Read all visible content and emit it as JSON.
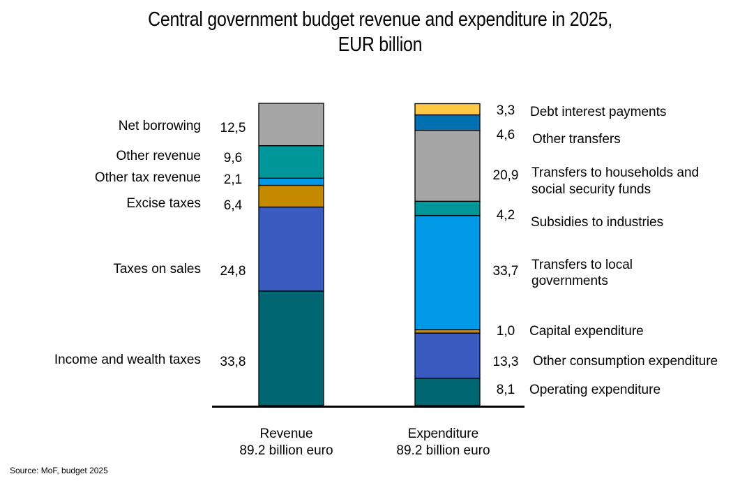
{
  "chart_data": {
    "type": "bar",
    "stacked": true,
    "title": "Central government budget revenue and expenditure in 2025, EUR billion",
    "title_lines": [
      "Central government budget revenue and expenditure in 2025,",
      "EUR billion"
    ],
    "source": "Source: MoF, budget 2025",
    "categories": [
      {
        "name": "Revenue",
        "total_label": "89.2 billion euro"
      },
      {
        "name": "Expenditure",
        "total_label": "89.2 billion euro"
      }
    ],
    "series": [
      {
        "stack": "Revenue",
        "segments": [
          {
            "name": "Income and wealth taxes",
            "value": 33.8,
            "label": "33,8",
            "color": "#006672"
          },
          {
            "name": "Taxes on sales",
            "value": 24.8,
            "label": "24,8",
            "color": "#3A5BBF"
          },
          {
            "name": "Excise taxes",
            "value": 6.4,
            "label": "6,4",
            "color": "#C68A00"
          },
          {
            "name": "Other tax revenue",
            "value": 2.1,
            "label": "2,1",
            "color": "#0099E6"
          },
          {
            "name": "Other revenue",
            "value": 9.6,
            "label": "9,6",
            "color": "#00979A"
          },
          {
            "name": "Net borrowing",
            "value": 12.5,
            "label": "12,5",
            "color": "#A6A6A6"
          }
        ]
      },
      {
        "stack": "Expenditure",
        "segments": [
          {
            "name": "Operating expenditure",
            "value": 8.1,
            "label": "8,1",
            "color": "#006672"
          },
          {
            "name": "Other consumption expenditure",
            "value": 13.3,
            "label": "13,3",
            "color": "#3A5BBF"
          },
          {
            "name": "Capital expenditure",
            "value": 1.0,
            "label": "1,0",
            "color": "#C68A00"
          },
          {
            "name": "Transfers to local governments",
            "value": 33.7,
            "label": "33,7",
            "color": "#0099E6"
          },
          {
            "name": "Subsidies to industries",
            "value": 4.2,
            "label": "4,2",
            "color": "#00979A"
          },
          {
            "name": "Transfers to households and social security funds",
            "value": 20.9,
            "label": "20,9",
            "color": "#A6A6A6"
          },
          {
            "name": "Other transfers",
            "value": 4.6,
            "label": "4,6",
            "color": "#0070B0"
          },
          {
            "name": "Debt interest payments",
            "value": 3.3,
            "label": "3,3",
            "color": "#FFC846"
          }
        ]
      }
    ],
    "ylim": [
      0,
      89.2
    ],
    "grid": false
  }
}
